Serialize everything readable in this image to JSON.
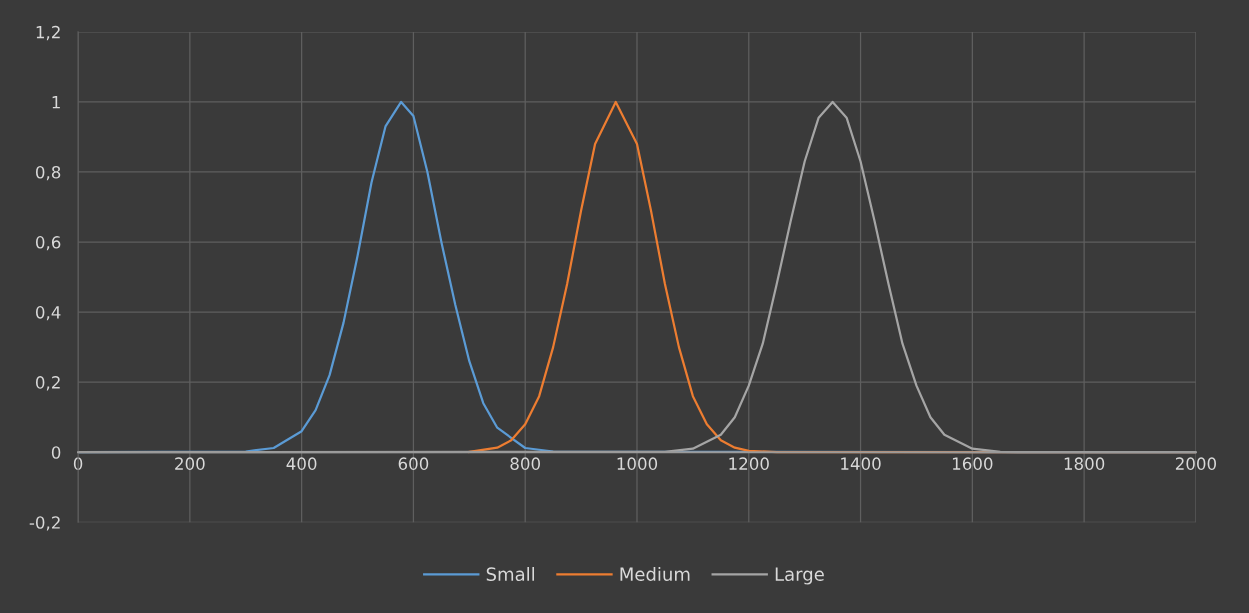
{
  "chart_data": {
    "type": "line",
    "series": [
      {
        "name": "Small",
        "color": "#5b9bd5",
        "x": [
          0,
          300,
          350,
          400,
          425,
          450,
          475,
          500,
          525,
          550,
          578,
          600,
          625,
          650,
          675,
          700,
          725,
          750,
          800,
          850,
          2000
        ],
        "values": [
          0,
          0.002,
          0.012,
          0.06,
          0.12,
          0.22,
          0.37,
          0.56,
          0.77,
          0.93,
          1,
          0.96,
          0.8,
          0.6,
          0.42,
          0.26,
          0.14,
          0.07,
          0.012,
          0.002,
          0
        ]
      },
      {
        "name": "Medium",
        "color": "#ed7d31",
        "x": [
          700,
          750,
          775,
          800,
          825,
          850,
          875,
          900,
          925,
          962,
          1000,
          1025,
          1050,
          1075,
          1100,
          1125,
          1150,
          1175,
          1200,
          1250,
          2000
        ],
        "values": [
          0.001,
          0.013,
          0.034,
          0.08,
          0.16,
          0.3,
          0.48,
          0.69,
          0.88,
          1,
          0.88,
          0.69,
          0.48,
          0.3,
          0.16,
          0.08,
          0.034,
          0.013,
          0.004,
          0,
          0
        ]
      },
      {
        "name": "Large",
        "color": "#a5a5a5",
        "x": [
          0,
          1050,
          1100,
          1150,
          1175,
          1200,
          1225,
          1250,
          1275,
          1300,
          1325,
          1350,
          1375,
          1400,
          1425,
          1450,
          1475,
          1500,
          1525,
          1550,
          1600,
          1650,
          1700,
          2000
        ],
        "values": [
          0,
          0.001,
          0.01,
          0.05,
          0.1,
          0.19,
          0.31,
          0.48,
          0.66,
          0.83,
          0.955,
          1,
          0.955,
          0.83,
          0.66,
          0.48,
          0.31,
          0.19,
          0.1,
          0.05,
          0.01,
          0.001,
          0,
          0
        ]
      }
    ],
    "xlim": [
      0,
      2000
    ],
    "xticks": [
      0,
      200,
      400,
      600,
      800,
      1000,
      1200,
      1400,
      1600,
      1800,
      2000
    ],
    "ylim": [
      -0.2,
      1.2
    ],
    "yticks": [
      {
        "value": -0.2,
        "label": "-0,2"
      },
      0,
      {
        "value": 0.2,
        "label": "0,2"
      },
      {
        "value": 0.4,
        "label": "0,4"
      },
      {
        "value": 0.6,
        "label": "0,6"
      },
      {
        "value": 0.8,
        "label": "0,8"
      },
      1,
      {
        "value": 1.2,
        "label": "1,2"
      }
    ],
    "grid": true,
    "legend": "bottom",
    "marker": "none",
    "line_style": "solid"
  }
}
